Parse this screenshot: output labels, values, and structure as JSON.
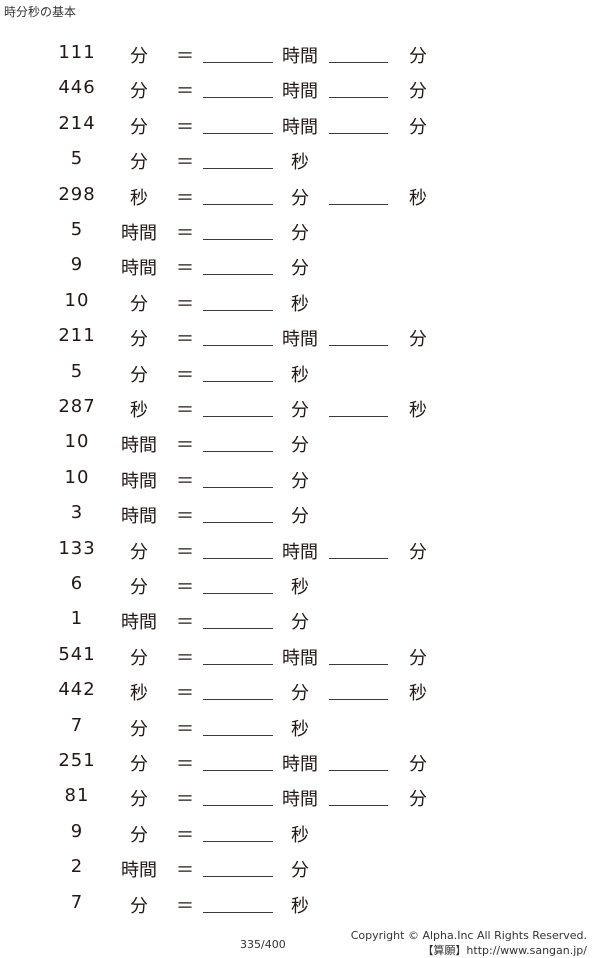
{
  "title": "時分秒の基本",
  "rows": [
    {
      "value": "111",
      "unit": "分",
      "to": [
        "時間",
        "分"
      ]
    },
    {
      "value": "446",
      "unit": "分",
      "to": [
        "時間",
        "分"
      ]
    },
    {
      "value": "214",
      "unit": "分",
      "to": [
        "時間",
        "分"
      ]
    },
    {
      "value": "5",
      "unit": "分",
      "to": [
        "秒"
      ]
    },
    {
      "value": "298",
      "unit": "秒",
      "to": [
        "分",
        "秒"
      ]
    },
    {
      "value": "5",
      "unit": "時間",
      "to": [
        "分"
      ]
    },
    {
      "value": "9",
      "unit": "時間",
      "to": [
        "分"
      ]
    },
    {
      "value": "10",
      "unit": "分",
      "to": [
        "秒"
      ]
    },
    {
      "value": "211",
      "unit": "分",
      "to": [
        "時間",
        "分"
      ]
    },
    {
      "value": "5",
      "unit": "分",
      "to": [
        "秒"
      ]
    },
    {
      "value": "287",
      "unit": "秒",
      "to": [
        "分",
        "秒"
      ]
    },
    {
      "value": "10",
      "unit": "時間",
      "to": [
        "分"
      ]
    },
    {
      "value": "10",
      "unit": "時間",
      "to": [
        "分"
      ]
    },
    {
      "value": "3",
      "unit": "時間",
      "to": [
        "分"
      ]
    },
    {
      "value": "133",
      "unit": "分",
      "to": [
        "時間",
        "分"
      ]
    },
    {
      "value": "6",
      "unit": "分",
      "to": [
        "秒"
      ]
    },
    {
      "value": "1",
      "unit": "時間",
      "to": [
        "分"
      ]
    },
    {
      "value": "541",
      "unit": "分",
      "to": [
        "時間",
        "分"
      ]
    },
    {
      "value": "442",
      "unit": "秒",
      "to": [
        "分",
        "秒"
      ]
    },
    {
      "value": "7",
      "unit": "分",
      "to": [
        "秒"
      ]
    },
    {
      "value": "251",
      "unit": "分",
      "to": [
        "時間",
        "分"
      ]
    },
    {
      "value": "81",
      "unit": "分",
      "to": [
        "時間",
        "分"
      ]
    },
    {
      "value": "9",
      "unit": "分",
      "to": [
        "秒"
      ]
    },
    {
      "value": "2",
      "unit": "時間",
      "to": [
        "分"
      ]
    },
    {
      "value": "7",
      "unit": "分",
      "to": [
        "秒"
      ]
    }
  ],
  "equals": "＝",
  "footer": {
    "page": "335/400",
    "copyright": "Copyright © Alpha.Inc All Rights Reserved.",
    "site": "【算願】http://www.sangan.jp/"
  }
}
